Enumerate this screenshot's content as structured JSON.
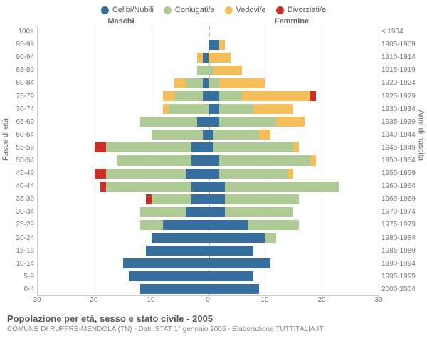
{
  "legend": [
    {
      "key": "celibi",
      "label": "Celibi/Nubili",
      "color": "#366f9e"
    },
    {
      "key": "coniugati",
      "label": "Coniugati/e",
      "color": "#aecb95"
    },
    {
      "key": "vedovi",
      "label": "Vedovi/e",
      "color": "#f5be5b"
    },
    {
      "key": "divorziati",
      "label": "Divorziati/e",
      "color": "#cf2b27"
    }
  ],
  "header_male": "Maschi",
  "header_female": "Femmine",
  "ylabel_left": "Fasce di età",
  "ylabel_right": "Anni di nascita",
  "title": "Popolazione per età, sesso e stato civile - 2005",
  "subtitle": "COMUNE DI RUFFRÈ-MENDOLA (TN) - Dati ISTAT 1° gennaio 2005 - Elaborazione TUTTITALIA.IT",
  "xmax": 30,
  "xticks": [
    30,
    20,
    10,
    0,
    10,
    20,
    30
  ],
  "age_labels": [
    "100+",
    "95-99",
    "90-94",
    "85-89",
    "80-84",
    "75-79",
    "70-74",
    "65-69",
    "60-64",
    "55-59",
    "50-54",
    "45-49",
    "40-44",
    "35-39",
    "30-34",
    "25-29",
    "20-24",
    "15-19",
    "10-14",
    "5-9",
    "0-4"
  ],
  "birth_labels": [
    "≤ 1904",
    "1905-1909",
    "1910-1914",
    "1915-1919",
    "1920-1924",
    "1925-1929",
    "1930-1934",
    "1935-1939",
    "1940-1944",
    "1945-1949",
    "1950-1954",
    "1955-1959",
    "1960-1964",
    "1965-1969",
    "1970-1974",
    "1975-1979",
    "1980-1984",
    "1985-1989",
    "1990-1994",
    "1995-1999",
    "2000-2004"
  ],
  "bars": [
    {
      "m": {
        "c": 0,
        "g": 0,
        "v": 0,
        "d": 0
      },
      "f": {
        "c": 0,
        "g": 0,
        "v": 0,
        "d": 0
      }
    },
    {
      "m": {
        "c": 0,
        "g": 0,
        "v": 0,
        "d": 0
      },
      "f": {
        "c": 2,
        "g": 0,
        "v": 1,
        "d": 0
      }
    },
    {
      "m": {
        "c": 1,
        "g": 0,
        "v": 1,
        "d": 0
      },
      "f": {
        "c": 0,
        "g": 0,
        "v": 4,
        "d": 0
      }
    },
    {
      "m": {
        "c": 0,
        "g": 2,
        "v": 0,
        "d": 0
      },
      "f": {
        "c": 0,
        "g": 1,
        "v": 5,
        "d": 0
      }
    },
    {
      "m": {
        "c": 1,
        "g": 3,
        "v": 2,
        "d": 0
      },
      "f": {
        "c": 0,
        "g": 2,
        "v": 8,
        "d": 0
      }
    },
    {
      "m": {
        "c": 1,
        "g": 5,
        "v": 2,
        "d": 0
      },
      "f": {
        "c": 2,
        "g": 4,
        "v": 12,
        "d": 1
      }
    },
    {
      "m": {
        "c": 0,
        "g": 7,
        "v": 1,
        "d": 0
      },
      "f": {
        "c": 2,
        "g": 6,
        "v": 7,
        "d": 0
      }
    },
    {
      "m": {
        "c": 2,
        "g": 10,
        "v": 0,
        "d": 0
      },
      "f": {
        "c": 2,
        "g": 10,
        "v": 5,
        "d": 0
      }
    },
    {
      "m": {
        "c": 1,
        "g": 9,
        "v": 0,
        "d": 0
      },
      "f": {
        "c": 1,
        "g": 8,
        "v": 2,
        "d": 0
      }
    },
    {
      "m": {
        "c": 3,
        "g": 15,
        "v": 0,
        "d": 2
      },
      "f": {
        "c": 1,
        "g": 14,
        "v": 1,
        "d": 0
      }
    },
    {
      "m": {
        "c": 3,
        "g": 13,
        "v": 0,
        "d": 0
      },
      "f": {
        "c": 2,
        "g": 16,
        "v": 1,
        "d": 0
      }
    },
    {
      "m": {
        "c": 4,
        "g": 14,
        "v": 0,
        "d": 2
      },
      "f": {
        "c": 2,
        "g": 12,
        "v": 1,
        "d": 0
      }
    },
    {
      "m": {
        "c": 3,
        "g": 15,
        "v": 0,
        "d": 1
      },
      "f": {
        "c": 3,
        "g": 20,
        "v": 0,
        "d": 0
      }
    },
    {
      "m": {
        "c": 3,
        "g": 7,
        "v": 0,
        "d": 1
      },
      "f": {
        "c": 3,
        "g": 13,
        "v": 0,
        "d": 0
      }
    },
    {
      "m": {
        "c": 4,
        "g": 8,
        "v": 0,
        "d": 0
      },
      "f": {
        "c": 3,
        "g": 12,
        "v": 0,
        "d": 0
      }
    },
    {
      "m": {
        "c": 8,
        "g": 4,
        "v": 0,
        "d": 0
      },
      "f": {
        "c": 7,
        "g": 9,
        "v": 0,
        "d": 0
      }
    },
    {
      "m": {
        "c": 10,
        "g": 0,
        "v": 0,
        "d": 0
      },
      "f": {
        "c": 10,
        "g": 2,
        "v": 0,
        "d": 0
      }
    },
    {
      "m": {
        "c": 11,
        "g": 0,
        "v": 0,
        "d": 0
      },
      "f": {
        "c": 8,
        "g": 0,
        "v": 0,
        "d": 0
      }
    },
    {
      "m": {
        "c": 15,
        "g": 0,
        "v": 0,
        "d": 0
      },
      "f": {
        "c": 11,
        "g": 0,
        "v": 0,
        "d": 0
      }
    },
    {
      "m": {
        "c": 14,
        "g": 0,
        "v": 0,
        "d": 0
      },
      "f": {
        "c": 8,
        "g": 0,
        "v": 0,
        "d": 0
      }
    },
    {
      "m": {
        "c": 12,
        "g": 0,
        "v": 0,
        "d": 0
      },
      "f": {
        "c": 9,
        "g": 0,
        "v": 0,
        "d": 0
      }
    }
  ],
  "colors": {
    "c": "#366f9e",
    "g": "#aecb95",
    "v": "#f5be5b",
    "d": "#cf2b27"
  },
  "background_color": "#ffffff",
  "grid_color": "#eeeeee",
  "axis_color": "#cccccc"
}
